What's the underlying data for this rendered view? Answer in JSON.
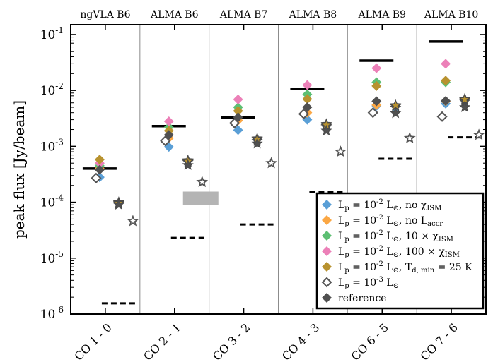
{
  "chart_data": {
    "type": "scatter",
    "title": "",
    "ylabel": "peak flux [Jy/beam]",
    "yscale": "log",
    "ylim": [
      1e-06,
      0.15
    ],
    "y_ticks": [
      {
        "value": 1e-06,
        "base": "10",
        "exp": "-6"
      },
      {
        "value": 1e-05,
        "base": "10",
        "exp": "-5"
      },
      {
        "value": 0.0001,
        "base": "10",
        "exp": "-4"
      },
      {
        "value": 0.001,
        "base": "10",
        "exp": "-3"
      },
      {
        "value": 0.01,
        "base": "10",
        "exp": "-2"
      },
      {
        "value": 0.1,
        "base": "10",
        "exp": "-1"
      }
    ],
    "categories": [
      "CO 1 - 0",
      "CO 2 - 1",
      "CO 3 - 2",
      "CO 4 - 3",
      "CO 6 - 5",
      "CO 7 - 6"
    ],
    "bands": [
      "ngVLA B6",
      "ALMA B6",
      "ALMA B7",
      "ALMA B8",
      "ALMA B9",
      "ALMA B10"
    ],
    "grid": false,
    "legend_position": "bottom-right",
    "series": [
      {
        "name": "L_p = 10^-2 L_sun, no chi_ISM",
        "color": "#5a9fd6",
        "marker": "diamond",
        "values": [
          0.00028,
          0.00098,
          0.00195,
          0.003,
          0.0053,
          0.0058
        ],
        "star_values": [
          9.2e-05,
          0.00052,
          0.00125,
          0.0022,
          0.0049,
          0.0063
        ]
      },
      {
        "name": "L_p = 10^-2 L_sun, no L_accr",
        "color": "#fba744",
        "marker": "diamond",
        "values": [
          0.0004,
          0.0014,
          0.0029,
          0.004,
          0.0055,
          0.0064
        ],
        "star_values": [
          0.0001,
          0.00056,
          0.00138,
          0.0025,
          0.0054,
          0.0071
        ]
      },
      {
        "name": "L_p = 10^-2 L_sun, 10 x chi_ISM",
        "color": "#5dbf73",
        "marker": "diamond",
        "values": [
          0.00045,
          0.0022,
          0.005,
          0.0085,
          0.014,
          0.014
        ],
        "star_values": [
          9.5e-05,
          0.00053,
          0.00132,
          0.0023,
          0.0052,
          0.0066
        ]
      },
      {
        "name": "L_p = 10^-2 L_sun, 100 x chi_ISM",
        "color": "#ec80b8",
        "marker": "diamond",
        "values": [
          0.0005,
          0.0028,
          0.0069,
          0.0125,
          0.025,
          0.03
        ],
        "star_values": [
          9.8e-05,
          0.00055,
          0.00135,
          0.0024,
          0.0053,
          0.0068
        ]
      },
      {
        "name": "L_p = 10^-2 L_sun, T_d,min = 25 K",
        "color": "#b8922f",
        "marker": "diamond",
        "values": [
          0.00058,
          0.0019,
          0.0043,
          0.007,
          0.012,
          0.015
        ],
        "star_values": [
          9.6e-05,
          0.00054,
          0.00135,
          0.0024,
          0.0054,
          0.0069
        ]
      },
      {
        "name": "L_p = 10^-3 L_sun",
        "color": "#555555",
        "marker": "open-diamond",
        "values": [
          0.00027,
          0.00125,
          0.0026,
          0.0038,
          0.004,
          0.0034
        ],
        "star_values": [
          4.6e-05,
          0.00023,
          0.0005,
          0.0008,
          0.0014,
          0.0016
        ]
      },
      {
        "name": "reference",
        "color": "#505050",
        "marker": "diamond",
        "values": [
          0.00038,
          0.0016,
          0.0033,
          0.005,
          0.0064,
          0.0065
        ],
        "star_values": [
          9e-05,
          0.00046,
          0.00112,
          0.0019,
          0.0039,
          0.005
        ]
      }
    ],
    "solid_lines": [
      0.0004,
      0.0023,
      0.0033,
      0.0107,
      0.034,
      0.075
    ],
    "dashed_lines": [
      1.55e-06,
      2.3e-05,
      4e-05,
      0.000152,
      0.0006,
      0.00145
    ],
    "gray_box": {
      "category": "CO 2 - 1",
      "low": 8.8e-05,
      "high": 0.000155
    }
  },
  "legend": [
    {
      "base": "L",
      "sub": "p",
      "rest": " = 10",
      "sup": "-2",
      "after": " L",
      "after_sub": "⊙",
      "tail": ", no χ",
      "tail_sub": "ISM",
      "tail2": "",
      "tail2_sub": ""
    },
    {
      "base": "L",
      "sub": "p",
      "rest": " = 10",
      "sup": "-2",
      "after": " L",
      "after_sub": "⊙",
      "tail": ", no L",
      "tail_sub": "accr",
      "tail2": "",
      "tail2_sub": ""
    },
    {
      "base": "L",
      "sub": "p",
      "rest": " = 10",
      "sup": "-2",
      "after": " L",
      "after_sub": "⊙",
      "tail": ", 10 × χ",
      "tail_sub": "ISM",
      "tail2": "",
      "tail2_sub": ""
    },
    {
      "base": "L",
      "sub": "p",
      "rest": " = 10",
      "sup": "-2",
      "after": " L",
      "after_sub": "⊙",
      "tail": ", 100 × χ",
      "tail_sub": "ISM",
      "tail2": "",
      "tail2_sub": ""
    },
    {
      "base": "L",
      "sub": "p",
      "rest": " = 10",
      "sup": "-2",
      "after": " L",
      "after_sub": "⊙",
      "tail": ", T",
      "tail_sub": "d, min",
      "tail2": " = 25 K",
      "tail2_sub": ""
    },
    {
      "base": "L",
      "sub": "p",
      "rest": " = 10",
      "sup": "-3",
      "after": " L",
      "after_sub": "⊙",
      "tail": "",
      "tail_sub": "",
      "tail2": "",
      "tail2_sub": ""
    },
    {
      "base": "reference",
      "sub": "",
      "rest": "",
      "sup": "",
      "after": "",
      "after_sub": "",
      "tail": "",
      "tail_sub": "",
      "tail2": "",
      "tail2_sub": ""
    }
  ]
}
